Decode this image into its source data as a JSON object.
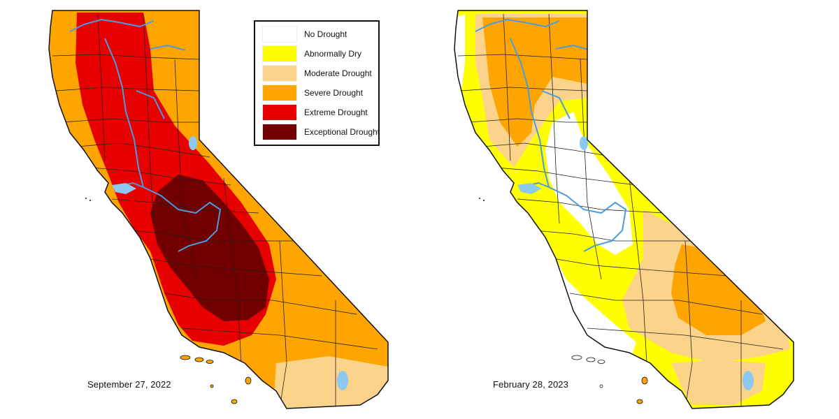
{
  "legend": {
    "items": [
      {
        "label": "No Drought",
        "color": "#ffffff"
      },
      {
        "label": "Abnormally Dry",
        "color": "#ffff00"
      },
      {
        "label": "Moderate Drought",
        "color": "#fcd38a"
      },
      {
        "label": "Severe Drought",
        "color": "#ffa500"
      },
      {
        "label": "Extreme Drought",
        "color": "#e60000"
      },
      {
        "label": "Exceptional Drought",
        "color": "#730000"
      }
    ]
  },
  "maps": [
    {
      "date": "September 27, 2022",
      "dominant_category": "Severe Drought"
    },
    {
      "date": "February 28, 2023",
      "dominant_category": "Abnormally Dry"
    }
  ],
  "colors": {
    "state_outline": "#111111",
    "rivers": "#4a9be0",
    "lakes": "#8cc8f0",
    "county_lines": "#222222"
  }
}
